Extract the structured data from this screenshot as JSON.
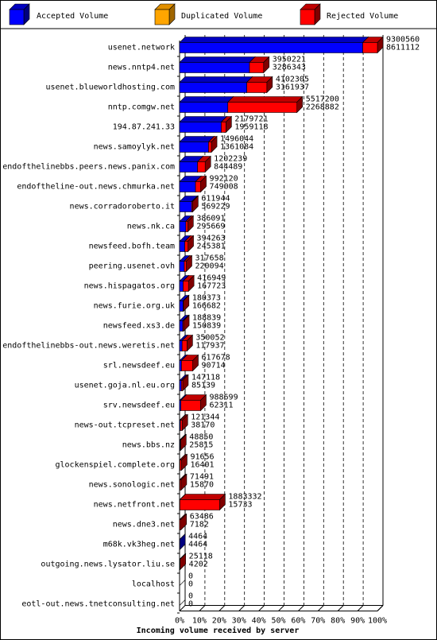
{
  "chart_data": {
    "type": "bar",
    "orientation": "horizontal",
    "stacked": true,
    "three_d": true,
    "legend_position": "top",
    "xlabel": "Incoming volume received by server",
    "x_ticks": [
      "0%",
      "10%",
      "20%",
      "30%",
      "40%",
      "50%",
      "60%",
      "70%",
      "80%",
      "90%",
      "100%"
    ],
    "xlim": [
      0,
      100
    ],
    "grid": "vertical-dashed",
    "legend": [
      {
        "name": "Accepted Volume",
        "color": "#0000ff"
      },
      {
        "name": "Duplicated Volume",
        "color": "#ffa500"
      },
      {
        "name": "Rejected Volume",
        "color": "#ff0000"
      }
    ],
    "max_total": 9300560,
    "categories": [
      "usenet.network",
      "news.nntp4.net",
      "usenet.blueworldhosting.com",
      "nntp.comgw.net",
      "194.87.241.33",
      "news.samoylyk.net",
      "endofthelinebbs.peers.news.panix.com",
      "endoftheline-out.news.chmurka.net",
      "news.corradoroberto.it",
      "news.nk.ca",
      "newsfeed.bofh.team",
      "peering.usenet.ovh",
      "news.hispagatos.org",
      "news.furie.org.uk",
      "newsfeed.xs3.de",
      "endofthelinebbs-out.news.weretis.net",
      "srl.newsdeef.eu",
      "usenet.goja.nl.eu.org",
      "srv.newsdeef.eu",
      "news-out.tcpreset.net",
      "news.bbs.nz",
      "glockenspiel.complete.org",
      "news.sonologic.net",
      "news.netfront.net",
      "news.dne3.net",
      "m68k.vk3heg.net",
      "outgoing.news.lysator.liu.se",
      "localhost",
      "eotl-out.news.tnetconsulting.net"
    ],
    "totals": [
      9300560,
      3950221,
      4102305,
      5517200,
      2179721,
      1496044,
      1202239,
      992120,
      611944,
      386091,
      394263,
      317658,
      416949,
      180373,
      188839,
      350052,
      617678,
      147118,
      988699,
      121344,
      48850,
      91656,
      71491,
      1883332,
      63486,
      4464,
      25118,
      0,
      0
    ],
    "accepted": [
      8611112,
      3286343,
      3161937,
      2268882,
      1959118,
      1361084,
      844489,
      749008,
      569229,
      295669,
      245381,
      220094,
      167723,
      166682,
      150839,
      117937,
      90714,
      85139,
      62311,
      38170,
      25815,
      16401,
      15870,
      15733,
      7182,
      4464,
      4202,
      0,
      0
    ],
    "total_labels": [
      "9300560",
      "3950221",
      "4102305",
      "5517200",
      "2179721",
      "1496044",
      "1202239",
      "992120",
      "611944",
      "386091",
      "394263",
      "317658",
      "416949",
      "180373",
      "188839",
      "350052",
      "617678",
      "147118",
      "988699",
      "121344",
      "48850",
      "91656",
      "71491",
      "1883332",
      "63486",
      "4464",
      "25118",
      "0",
      "0"
    ],
    "accepted_labels": [
      "8611112",
      "3286343",
      "3161937",
      "2268882",
      "1959118",
      "1361084",
      "844489",
      "749008",
      "569229",
      "295669",
      "245381",
      "220094",
      "167723",
      "166682",
      "150839",
      "117937",
      "90714",
      "85139",
      "62311",
      "38170",
      "25815",
      "16401",
      "15870",
      "15733",
      "7182",
      "4464",
      "4202",
      "0",
      "0"
    ]
  }
}
